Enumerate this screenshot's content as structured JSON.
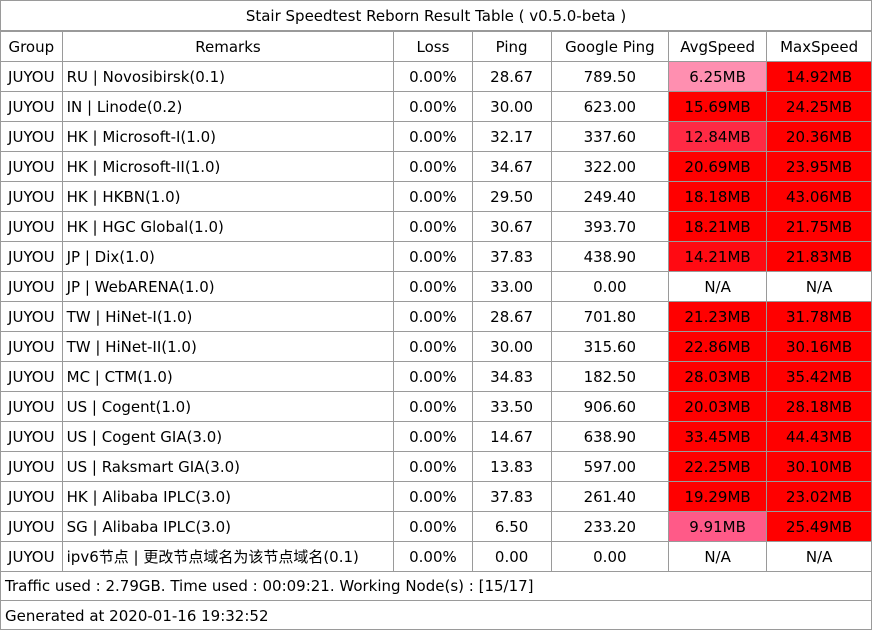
{
  "title": "Stair Speedtest Reborn Result Table ( v0.5.0-beta )",
  "headers": [
    "Group",
    "Remarks",
    "Loss",
    "Ping",
    "Google Ping",
    "AvgSpeed",
    "MaxSpeed"
  ],
  "rows": [
    {
      "group": "JUYOU",
      "remarks": "RU | Novosibirsk(0.1)",
      "loss": "0.00%",
      "ping": "28.67",
      "gping": "789.50",
      "avg": "6.25MB",
      "max": "14.92MB",
      "avg_color": "#ff8fb0",
      "max_color": "#ff0000"
    },
    {
      "group": "JUYOU",
      "remarks": "IN | Linode(0.2)",
      "loss": "0.00%",
      "ping": "30.00",
      "gping": "623.00",
      "avg": "15.69MB",
      "max": "24.25MB",
      "avg_color": "#ff0000",
      "max_color": "#ff0000"
    },
    {
      "group": "JUYOU",
      "remarks": "HK | Microsoft-I(1.0)",
      "loss": "0.00%",
      "ping": "32.17",
      "gping": "337.60",
      "avg": "12.84MB",
      "max": "20.36MB",
      "avg_color": "#ff2a44",
      "max_color": "#ff0000"
    },
    {
      "group": "JUYOU",
      "remarks": "HK | Microsoft-II(1.0)",
      "loss": "0.00%",
      "ping": "34.67",
      "gping": "322.00",
      "avg": "20.69MB",
      "max": "23.95MB",
      "avg_color": "#ff0000",
      "max_color": "#ff0000"
    },
    {
      "group": "JUYOU",
      "remarks": "HK | HKBN(1.0)",
      "loss": "0.00%",
      "ping": "29.50",
      "gping": "249.40",
      "avg": "18.18MB",
      "max": "43.06MB",
      "avg_color": "#ff0000",
      "max_color": "#ff0000"
    },
    {
      "group": "JUYOU",
      "remarks": "HK | HGC Global(1.0)",
      "loss": "0.00%",
      "ping": "30.67",
      "gping": "393.70",
      "avg": "18.21MB",
      "max": "21.75MB",
      "avg_color": "#ff0000",
      "max_color": "#ff0000"
    },
    {
      "group": "JUYOU",
      "remarks": "JP | Dix(1.0)",
      "loss": "0.00%",
      "ping": "37.83",
      "gping": "438.90",
      "avg": "14.21MB",
      "max": "21.83MB",
      "avg_color": "#ff0a12",
      "max_color": "#ff0000"
    },
    {
      "group": "JUYOU",
      "remarks": "JP | WebARENA(1.0)",
      "loss": "0.00%",
      "ping": "33.00",
      "gping": "0.00",
      "avg": "N/A",
      "max": "N/A",
      "avg_color": "#ffffff",
      "max_color": "#ffffff"
    },
    {
      "group": "JUYOU",
      "remarks": "TW | HiNet-I(1.0)",
      "loss": "0.00%",
      "ping": "28.67",
      "gping": "701.80",
      "avg": "21.23MB",
      "max": "31.78MB",
      "avg_color": "#ff0000",
      "max_color": "#ff0000"
    },
    {
      "group": "JUYOU",
      "remarks": "TW | HiNet-II(1.0)",
      "loss": "0.00%",
      "ping": "30.00",
      "gping": "315.60",
      "avg": "22.86MB",
      "max": "30.16MB",
      "avg_color": "#ff0000",
      "max_color": "#ff0000"
    },
    {
      "group": "JUYOU",
      "remarks": "MC | CTM(1.0)",
      "loss": "0.00%",
      "ping": "34.83",
      "gping": "182.50",
      "avg": "28.03MB",
      "max": "35.42MB",
      "avg_color": "#ff0000",
      "max_color": "#ff0000"
    },
    {
      "group": "JUYOU",
      "remarks": "US | Cogent(1.0)",
      "loss": "0.00%",
      "ping": "33.50",
      "gping": "906.60",
      "avg": "20.03MB",
      "max": "28.18MB",
      "avg_color": "#ff0000",
      "max_color": "#ff0000"
    },
    {
      "group": "JUYOU",
      "remarks": "US | Cogent GIA(3.0)",
      "loss": "0.00%",
      "ping": "14.67",
      "gping": "638.90",
      "avg": "33.45MB",
      "max": "44.43MB",
      "avg_color": "#ff0000",
      "max_color": "#ff0000"
    },
    {
      "group": "JUYOU",
      "remarks": "US | Raksmart GIA(3.0)",
      "loss": "0.00%",
      "ping": "13.83",
      "gping": "597.00",
      "avg": "22.25MB",
      "max": "30.10MB",
      "avg_color": "#ff0000",
      "max_color": "#ff0000"
    },
    {
      "group": "JUYOU",
      "remarks": "HK | Alibaba IPLC(3.0)",
      "loss": "0.00%",
      "ping": "37.83",
      "gping": "261.40",
      "avg": "19.29MB",
      "max": "23.02MB",
      "avg_color": "#ff0000",
      "max_color": "#ff0000"
    },
    {
      "group": "JUYOU",
      "remarks": "SG | Alibaba IPLC(3.0)",
      "loss": "0.00%",
      "ping": "6.50",
      "gping": "233.20",
      "avg": "9.91MB",
      "max": "25.49MB",
      "avg_color": "#ff5a88",
      "max_color": "#ff0000"
    },
    {
      "group": "JUYOU",
      "remarks": "ipv6节点 | 更改节点域名为该节点域名(0.1)",
      "loss": "0.00%",
      "ping": "0.00",
      "gping": "0.00",
      "avg": "N/A",
      "max": "N/A",
      "avg_color": "#ffffff",
      "max_color": "#ffffff"
    }
  ],
  "footer": {
    "traffic": "Traffic used : 2.79GB. Time used : 00:09:21. Working Node(s) : [15/17]",
    "generated": "Generated at 2020-01-16 19:32:52"
  }
}
